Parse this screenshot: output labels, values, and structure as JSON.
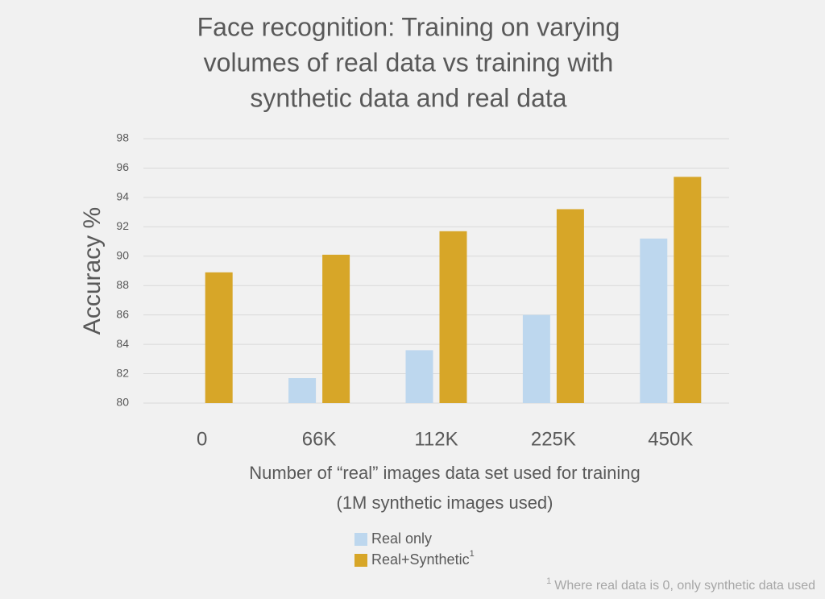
{
  "chart_data": {
    "type": "bar",
    "title": [
      "Face recognition: Training on varying",
      "volumes of real data vs training with",
      "synthetic data and real data"
    ],
    "ylabel": "Accuracy %",
    "xlabel": [
      "Number of “real” images data set used for training",
      "(1M synthetic images used)"
    ],
    "categories": [
      "0",
      "66K",
      "112K",
      "225K",
      "450K"
    ],
    "series": [
      {
        "name": "Real only",
        "color": "#bdd7ee",
        "values": [
          null,
          81.7,
          83.6,
          86.0,
          91.2
        ]
      },
      {
        "name": "Real+Synthetic",
        "color": "#d7a628",
        "values": [
          88.9,
          90.1,
          91.7,
          93.2,
          95.4
        ]
      }
    ],
    "ylim": [
      80,
      98
    ],
    "yticks": [
      80,
      82,
      84,
      86,
      88,
      90,
      92,
      94,
      96,
      98
    ],
    "grid": true,
    "footnote": {
      "marker": "1",
      "text": "Where real data is 0, only synthetic data used"
    }
  }
}
